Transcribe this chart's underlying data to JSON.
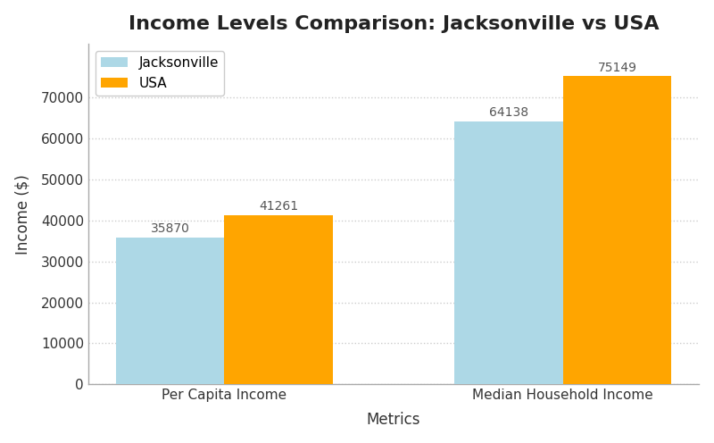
{
  "title": "Income Levels Comparison: Jacksonville vs USA",
  "categories": [
    "Per Capita Income",
    "Median Household Income"
  ],
  "jacksonville_values": [
    35870,
    64138
  ],
  "usa_values": [
    41261,
    75149
  ],
  "jacksonville_color": "#ADD8E6",
  "usa_color": "#FFA500",
  "xlabel": "Metrics",
  "ylabel": "Income ($)",
  "ylim": [
    0,
    83000
  ],
  "yticks": [
    0,
    10000,
    20000,
    30000,
    40000,
    50000,
    60000,
    70000
  ],
  "legend_labels": [
    "Jacksonville",
    "USA"
  ],
  "bar_width": 0.32,
  "title_fontsize": 16,
  "axis_label_fontsize": 12,
  "tick_fontsize": 11,
  "annotation_fontsize": 10,
  "background_color": "#ffffff",
  "plot_bg_color": "#ffffff",
  "grid_color": "#cccccc",
  "spine_color": "#aaaaaa",
  "annotation_color": "#555555"
}
